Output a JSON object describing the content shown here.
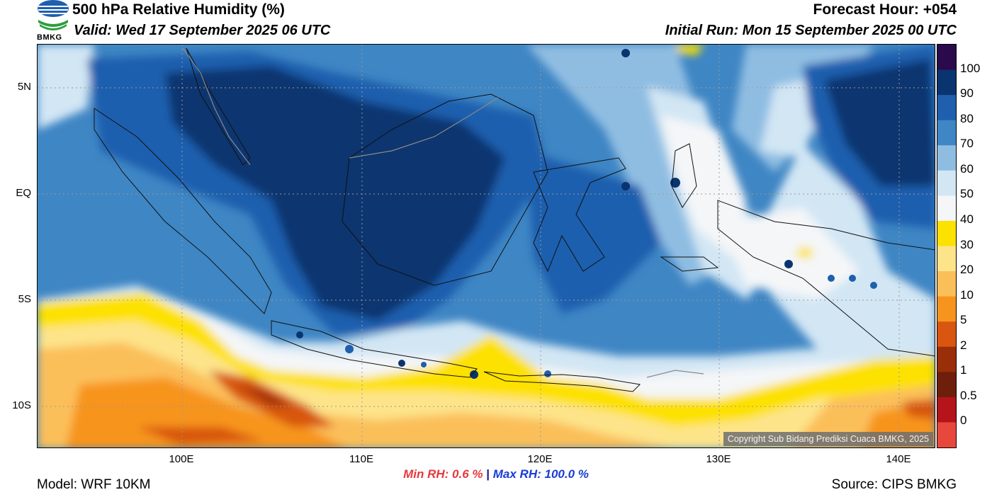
{
  "header": {
    "title": "500 hPa Relative Humidity (%)",
    "valid": "Valid: Wed 17 September 2025 06 UTC",
    "forecast_hour": "Forecast Hour: +054",
    "initial_run": "Initial Run: Mon 15 September 2025 00 UTC"
  },
  "logo": {
    "text": "BMKG",
    "icon": "bmkg-logo-icon"
  },
  "map": {
    "lat_labels": [
      "5N",
      "EQ",
      "5S",
      "10S"
    ],
    "lon_labels": [
      "100E",
      "110E",
      "120E",
      "130E",
      "140E"
    ],
    "copyright": "Copyright Sub Bidang Prediksi Cuaca BMKG, 2025"
  },
  "colorbar": {
    "labels": [
      "100",
      "90",
      "80",
      "70",
      "60",
      "50",
      "40",
      "30",
      "20",
      "10",
      "5",
      "2",
      "1",
      "0.5",
      "0"
    ],
    "colors": [
      "#2a0a4a",
      "#0a3470",
      "#1f5fae",
      "#3f86c4",
      "#8fbde2",
      "#d2e6f4",
      "#f4f6f8",
      "#fde100",
      "#fde48a",
      "#fbbf5a",
      "#f7941d",
      "#d8560f",
      "#9a2e08",
      "#6e1f0c",
      "#b5141b",
      "#e8483c"
    ]
  },
  "stats": {
    "min_label": "Min RH:",
    "min_value": "0.6 %",
    "separator": "|",
    "max_label": "Max RH:",
    "max_value": "100.0 %"
  },
  "footer": {
    "model": "Model: WRF 10KM",
    "source": "Source: CIPS BMKG"
  }
}
